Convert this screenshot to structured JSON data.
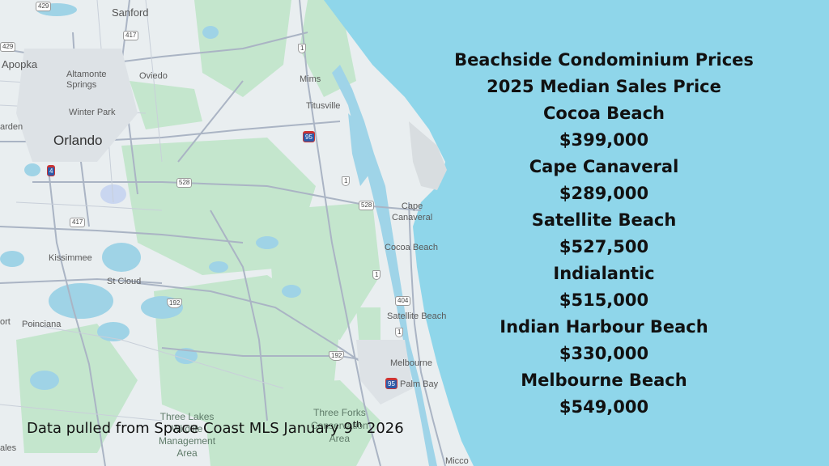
{
  "map": {
    "places": {
      "sanford": "Sanford",
      "apopka": "Apopka",
      "altamonte": "Altamonte\nSprings",
      "oviedo": "Oviedo",
      "winter_park": "Winter Park",
      "garden": "arden",
      "orlando": "Orlando",
      "mims": "Mims",
      "titusville": "Titusville",
      "cape_canaveral": "Cape\nCanaveral",
      "cocoa_beach": "Cocoa Beach",
      "kissimmee": "Kissimmee",
      "st_cloud": "St Cloud",
      "poinciana": "Poinciana",
      "satellite_beach": "Satellite Beach",
      "melbourne": "Melbourne",
      "palm_bay": "Palm Bay",
      "three_lakes": "Three Lakes\nWildlife\nManagement\nArea",
      "three_forks": "Three Forks\nConservation\nArea",
      "micco": "Micco",
      "ort": "ort",
      "ales": "ales"
    },
    "shields": {
      "r429": "429",
      "r417a": "417",
      "r429b": "429",
      "r1a": "1",
      "r95a": "95",
      "r528a": "528",
      "r4": "4",
      "r1b": "1",
      "r528b": "528",
      "r417b": "417",
      "r1c": "1",
      "r192a": "192",
      "r404": "404",
      "r1d": "1",
      "r192b": "192",
      "r95b": "95"
    }
  },
  "headline": {
    "title_line1": "Beachside Condominium Prices",
    "title_line2": "2025 Median Sales Price"
  },
  "listings": [
    {
      "area": "Cocoa Beach",
      "price": "$399,000"
    },
    {
      "area": "Cape Canaveral",
      "price": "$289,000"
    },
    {
      "area": "Satellite Beach",
      "price": "$527,500"
    },
    {
      "area": "Indialantic",
      "price": "$515,000"
    },
    {
      "area": "Indian Harbour Beach",
      "price": "$330,000"
    },
    {
      "area": "Melbourne Beach",
      "price": "$549,000"
    }
  ],
  "footnote": {
    "text_before": "Data pulled from Space Coast MLS January 9",
    "superscript": "th",
    "text_after": " 2026"
  },
  "colors": {
    "ocean": "#8fd6ea",
    "land": "#e8eef0",
    "park_green": "#bfe5c9",
    "water": "#9fd4e8",
    "road": "#aab4c4"
  }
}
